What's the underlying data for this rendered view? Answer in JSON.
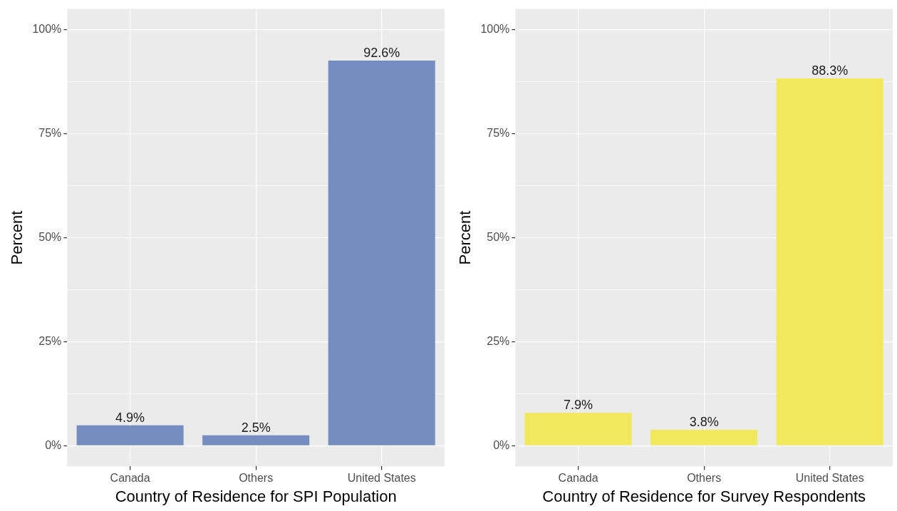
{
  "chart_data": [
    {
      "type": "bar",
      "categories": [
        "Canada",
        "Others",
        "United States"
      ],
      "values": [
        4.9,
        2.5,
        92.6
      ],
      "color": "#768dc1",
      "value_labels": [
        "4.9%",
        "2.5%",
        "92.6%"
      ],
      "xlabel": "Country of Residence for SPI Population",
      "ylabel": "Percent",
      "ylim": [
        -5,
        105
      ],
      "yticks": [
        {
          "value": 0,
          "label": "0%"
        },
        {
          "value": 12.5,
          "label": null
        },
        {
          "value": 25,
          "label": "25%"
        },
        {
          "value": 37.5,
          "label": null
        },
        {
          "value": 50,
          "label": "50%"
        },
        {
          "value": 62.5,
          "label": null
        },
        {
          "value": 75,
          "label": "75%"
        },
        {
          "value": 87.5,
          "label": null
        },
        {
          "value": 100,
          "label": "100%"
        }
      ],
      "grid": true,
      "legend": false
    },
    {
      "type": "bar",
      "categories": [
        "Canada",
        "Others",
        "United States"
      ],
      "values": [
        7.9,
        3.8,
        88.3
      ],
      "color": "#f2e85c",
      "value_labels": [
        "7.9%",
        "3.8%",
        "88.3%"
      ],
      "xlabel": "Country of Residence for Survey Respondents",
      "ylabel": "Percent",
      "ylim": [
        -5,
        105
      ],
      "yticks": [
        {
          "value": 0,
          "label": "0%"
        },
        {
          "value": 12.5,
          "label": null
        },
        {
          "value": 25,
          "label": "25%"
        },
        {
          "value": 37.5,
          "label": null
        },
        {
          "value": 50,
          "label": "50%"
        },
        {
          "value": 62.5,
          "label": null
        },
        {
          "value": 75,
          "label": "75%"
        },
        {
          "value": 87.5,
          "label": null
        },
        {
          "value": 100,
          "label": "100%"
        }
      ],
      "grid": true,
      "legend": false
    }
  ]
}
